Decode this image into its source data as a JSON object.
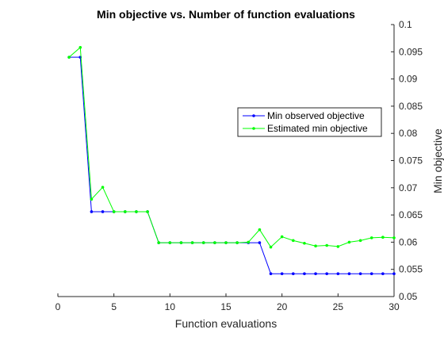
{
  "chart_data": {
    "type": "line",
    "title": "Min objective vs. Number of function evaluations",
    "xlabel": "Function evaluations",
    "ylabel": "Min objective",
    "xlim": [
      0,
      30
    ],
    "ylim": [
      0.05,
      0.1
    ],
    "x_ticks": [
      0,
      5,
      10,
      15,
      20,
      25,
      30
    ],
    "x_tick_labels": [
      "0",
      "5",
      "10",
      "15",
      "20",
      "25",
      "30"
    ],
    "y_ticks": [
      0.05,
      0.055,
      0.06,
      0.065,
      0.07,
      0.075,
      0.08,
      0.085,
      0.09,
      0.095,
      0.1
    ],
    "y_tick_labels": [
      "0.05",
      "0.055",
      "0.06",
      "0.065",
      "0.07",
      "0.075",
      "0.08",
      "0.085",
      "0.09",
      "0.095",
      "0.1"
    ],
    "y_axis_side": "right",
    "grid": false,
    "legend_position": "right",
    "x": [
      1,
      2,
      3,
      4,
      5,
      6,
      7,
      8,
      9,
      10,
      11,
      12,
      13,
      14,
      15,
      16,
      17,
      18,
      19,
      20,
      21,
      22,
      23,
      24,
      25,
      26,
      27,
      28,
      29,
      30
    ],
    "series": [
      {
        "name": "Min observed objective",
        "color": "#0000ff",
        "values": [
          0.094,
          0.094,
          0.0656,
          0.0656,
          0.0656,
          0.0656,
          0.0656,
          0.0656,
          0.0599,
          0.0599,
          0.0599,
          0.0599,
          0.0599,
          0.0599,
          0.0599,
          0.0599,
          0.0599,
          0.0599,
          0.0542,
          0.0542,
          0.0542,
          0.0542,
          0.0542,
          0.0542,
          0.0542,
          0.0542,
          0.0542,
          0.0542,
          0.0542,
          0.0542
        ]
      },
      {
        "name": "Estimated min objective",
        "color": "#00ff00",
        "values": [
          0.094,
          0.0958,
          0.0679,
          0.0701,
          0.0656,
          0.0656,
          0.0656,
          0.0656,
          0.0599,
          0.0599,
          0.0599,
          0.0599,
          0.0599,
          0.0599,
          0.0599,
          0.0599,
          0.06,
          0.0623,
          0.0591,
          0.061,
          0.0603,
          0.0598,
          0.0593,
          0.0594,
          0.0592,
          0.06,
          0.0603,
          0.0608,
          0.0609,
          0.0608
        ]
      }
    ]
  }
}
